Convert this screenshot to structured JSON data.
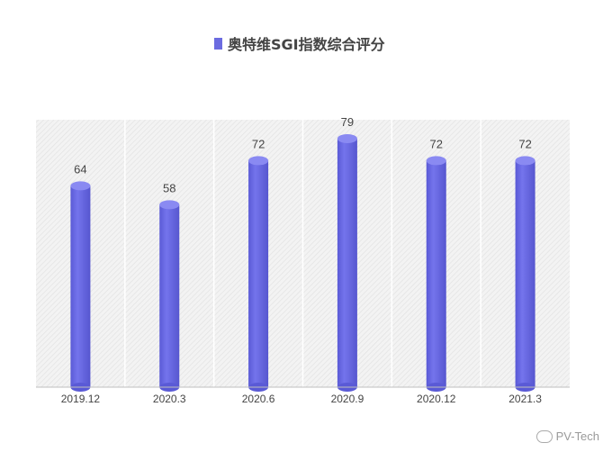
{
  "chart_data": {
    "type": "bar",
    "title": "",
    "legend": {
      "label": "奥特维SGI指数综合评分",
      "position": "top",
      "color": "#6b6be0"
    },
    "categories": [
      "2019.12",
      "2020.3",
      "2020.6",
      "2020.9",
      "2020.12",
      "2021.3"
    ],
    "series": [
      {
        "name": "奥特维SGI指数综合评分",
        "values": [
          64,
          58,
          72,
          79,
          72,
          72
        ]
      }
    ],
    "ylim": [
      0,
      85
    ],
    "xlabel": "",
    "ylabel": "",
    "grid": false,
    "data_labels": true
  },
  "watermark": {
    "text": "PV-Tech"
  }
}
